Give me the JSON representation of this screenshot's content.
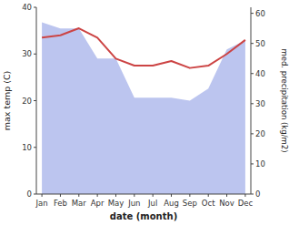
{
  "chart_data": {
    "type": "line",
    "categories": [
      "Jan",
      "Feb",
      "Mar",
      "Apr",
      "May",
      "Jun",
      "Jul",
      "Aug",
      "Sep",
      "Oct",
      "Nov",
      "Dec"
    ],
    "series": [
      {
        "type": "line",
        "color": "#cc4444",
        "values": [
          33.5,
          34.0,
          35.5,
          33.5,
          29.0,
          27.5,
          27.5,
          28.5,
          27.0,
          27.5,
          30.0,
          33.0
        ]
      },
      {
        "type": "area",
        "color": "#bcc5ef",
        "axis": "y2",
        "values": [
          57,
          55,
          55,
          45,
          45,
          32,
          32,
          32,
          31,
          35,
          48,
          51
        ]
      }
    ],
    "xlabel": "date (month)",
    "ylabel": "max temp (C)",
    "y2label": "med. precipitation (kg/m2)",
    "ylim": [
      0,
      40
    ],
    "yticks": [
      0,
      10,
      20,
      30,
      40
    ],
    "y2lim": [
      0,
      62
    ],
    "y2ticks": [
      0,
      10,
      20,
      30,
      40,
      50,
      60
    ],
    "grid": false
  }
}
